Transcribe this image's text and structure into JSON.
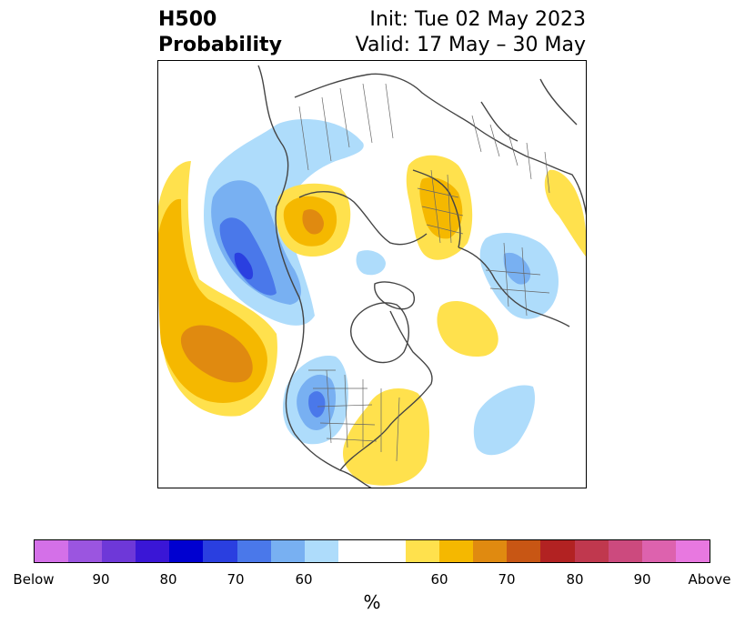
{
  "header": {
    "title_line1": "H500",
    "title_line2": "Probability",
    "init": "Init: Tue 02 May 2023",
    "valid": "Valid: 17 May – 30 May"
  },
  "colorbar": {
    "unit": "%",
    "tick_labels": [
      "Below",
      "90",
      "80",
      "70",
      "60",
      "60",
      "70",
      "80",
      "90",
      "Above"
    ],
    "colors": [
      "#d470e8",
      "#9b55e0",
      "#6e38d8",
      "#3a16d6",
      "#0000d0",
      "#2a3fe0",
      "#4a78ea",
      "#78b0f2",
      "#aedcfb",
      "#ffffff",
      "#ffe14d",
      "#f5b800",
      "#e08a10",
      "#c85614",
      "#b22222",
      "#c0384e",
      "#cc4a7e",
      "#dd62ae",
      "#e878e0"
    ]
  },
  "map": {
    "colors": {
      "above_light": "#ffe14d",
      "above_mid": "#f5b800",
      "above_dark": "#e08a10",
      "below_light": "#aedcfb",
      "below_mid": "#78b0f2",
      "below_dark": "#4a78ea",
      "below_core": "#2a3fe0"
    }
  }
}
